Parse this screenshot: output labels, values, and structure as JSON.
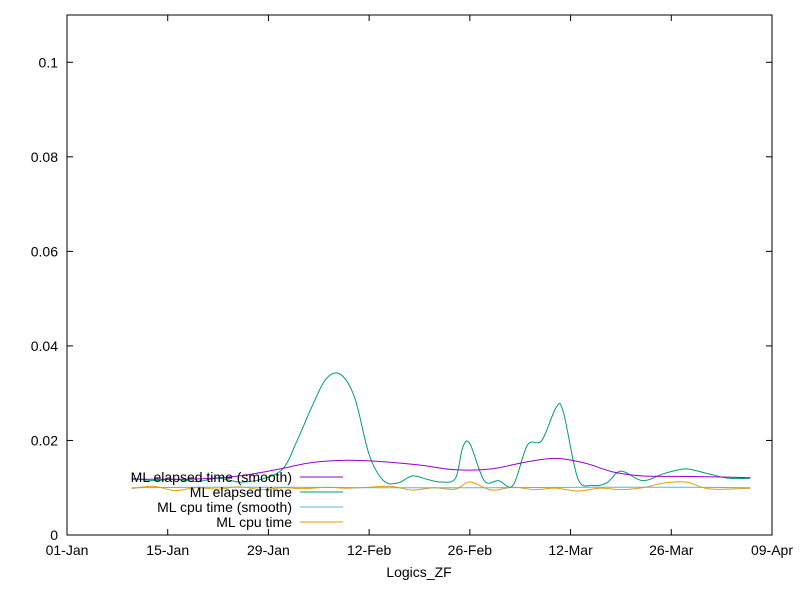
{
  "chart_data": {
    "type": "line",
    "title": "",
    "xlabel": "Logics_ZF",
    "ylabel": "",
    "x_axis_type": "date",
    "xlim": [
      "2022-01-01",
      "2022-04-09"
    ],
    "ylim": [
      0,
      0.11
    ],
    "x_ticks": [
      {
        "date": "2022-01-01",
        "label": "01-Jan"
      },
      {
        "date": "2022-01-15",
        "label": "15-Jan"
      },
      {
        "date": "2022-01-29",
        "label": "29-Jan"
      },
      {
        "date": "2022-02-12",
        "label": "12-Feb"
      },
      {
        "date": "2022-02-26",
        "label": "26-Feb"
      },
      {
        "date": "2022-03-12",
        "label": "12-Mar"
      },
      {
        "date": "2022-03-26",
        "label": "26-Mar"
      },
      {
        "date": "2022-04-09",
        "label": "09-Apr"
      }
    ],
    "y_ticks": [
      {
        "value": 0,
        "label": "0"
      },
      {
        "value": 0.02,
        "label": "0.02"
      },
      {
        "value": 0.04,
        "label": "0.04"
      },
      {
        "value": 0.06,
        "label": "0.06"
      },
      {
        "value": 0.08,
        "label": "0.08"
      },
      {
        "value": 0.1,
        "label": "0.1"
      }
    ],
    "grid": false,
    "legend_position": "bottom-left",
    "series": [
      {
        "name": "ML elapsed time (smooth)",
        "color": "#9400d3",
        "points": [
          [
            "2022-01-10",
            0.0118
          ],
          [
            "2022-01-15",
            0.0118
          ],
          [
            "2022-01-20",
            0.0119
          ],
          [
            "2022-01-25",
            0.0125
          ],
          [
            "2022-01-30",
            0.0138
          ],
          [
            "2022-02-04",
            0.0153
          ],
          [
            "2022-02-09",
            0.0158
          ],
          [
            "2022-02-14",
            0.0155
          ],
          [
            "2022-02-19",
            0.0148
          ],
          [
            "2022-02-24",
            0.0138
          ],
          [
            "2022-03-01",
            0.014
          ],
          [
            "2022-03-06",
            0.0155
          ],
          [
            "2022-03-10",
            0.0162
          ],
          [
            "2022-03-14",
            0.0152
          ],
          [
            "2022-03-18",
            0.0133
          ],
          [
            "2022-03-22",
            0.0125
          ],
          [
            "2022-03-27",
            0.0124
          ],
          [
            "2022-04-01",
            0.0123
          ],
          [
            "2022-04-06",
            0.0121
          ]
        ]
      },
      {
        "name": "ML elapsed time",
        "color": "#009e73",
        "points": [
          [
            "2022-01-10",
            0.012
          ],
          [
            "2022-01-13",
            0.0115
          ],
          [
            "2022-01-16",
            0.0118
          ],
          [
            "2022-01-19",
            0.0113
          ],
          [
            "2022-01-22",
            0.012
          ],
          [
            "2022-01-25",
            0.0112
          ],
          [
            "2022-01-28",
            0.0118
          ],
          [
            "2022-01-31",
            0.014
          ],
          [
            "2022-02-02",
            0.02
          ],
          [
            "2022-02-04",
            0.027
          ],
          [
            "2022-02-06",
            0.033
          ],
          [
            "2022-02-08",
            0.034
          ],
          [
            "2022-02-10",
            0.029
          ],
          [
            "2022-02-12",
            0.017
          ],
          [
            "2022-02-14",
            0.0115
          ],
          [
            "2022-02-16",
            0.011
          ],
          [
            "2022-02-18",
            0.0125
          ],
          [
            "2022-02-20",
            0.0118
          ],
          [
            "2022-02-22",
            0.0112
          ],
          [
            "2022-02-24",
            0.012
          ],
          [
            "2022-02-25",
            0.0185
          ],
          [
            "2022-02-26",
            0.0193
          ],
          [
            "2022-02-28",
            0.0115
          ],
          [
            "2022-03-02",
            0.0115
          ],
          [
            "2022-03-04",
            0.0105
          ],
          [
            "2022-03-06",
            0.019
          ],
          [
            "2022-03-08",
            0.02
          ],
          [
            "2022-03-10",
            0.027
          ],
          [
            "2022-03-11",
            0.026
          ],
          [
            "2022-03-13",
            0.012
          ],
          [
            "2022-03-15",
            0.0105
          ],
          [
            "2022-03-17",
            0.011
          ],
          [
            "2022-03-19",
            0.0135
          ],
          [
            "2022-03-22",
            0.0115
          ],
          [
            "2022-03-25",
            0.013
          ],
          [
            "2022-03-28",
            0.014
          ],
          [
            "2022-03-31",
            0.013
          ],
          [
            "2022-04-03",
            0.012
          ],
          [
            "2022-04-06",
            0.012
          ]
        ]
      },
      {
        "name": "ML cpu time (smooth)",
        "color": "#56b4e9",
        "points": [
          [
            "2022-01-10",
            0.01
          ],
          [
            "2022-01-20",
            0.0101
          ],
          [
            "2022-02-01",
            0.0101
          ],
          [
            "2022-02-15",
            0.01
          ],
          [
            "2022-03-01",
            0.01
          ],
          [
            "2022-03-15",
            0.0101
          ],
          [
            "2022-03-29",
            0.0101
          ],
          [
            "2022-04-06",
            0.01
          ]
        ]
      },
      {
        "name": "ML cpu time",
        "color": "#e69f00",
        "points": [
          [
            "2022-01-10",
            0.0098
          ],
          [
            "2022-01-13",
            0.0103
          ],
          [
            "2022-01-16",
            0.0094
          ],
          [
            "2022-01-19",
            0.01
          ],
          [
            "2022-01-22",
            0.0097
          ],
          [
            "2022-01-25",
            0.0102
          ],
          [
            "2022-01-28",
            0.0096
          ],
          [
            "2022-01-31",
            0.01
          ],
          [
            "2022-02-03",
            0.0098
          ],
          [
            "2022-02-06",
            0.0101
          ],
          [
            "2022-02-09",
            0.0099
          ],
          [
            "2022-02-12",
            0.0101
          ],
          [
            "2022-02-15",
            0.0103
          ],
          [
            "2022-02-18",
            0.0095
          ],
          [
            "2022-02-21",
            0.01
          ],
          [
            "2022-02-24",
            0.0097
          ],
          [
            "2022-02-26",
            0.0112
          ],
          [
            "2022-03-01",
            0.0095
          ],
          [
            "2022-03-04",
            0.0101
          ],
          [
            "2022-03-07",
            0.0096
          ],
          [
            "2022-03-10",
            0.0099
          ],
          [
            "2022-03-13",
            0.0093
          ],
          [
            "2022-03-16",
            0.0099
          ],
          [
            "2022-03-19",
            0.0096
          ],
          [
            "2022-03-22",
            0.01
          ],
          [
            "2022-03-25",
            0.011
          ],
          [
            "2022-03-28",
            0.0112
          ],
          [
            "2022-03-31",
            0.0098
          ],
          [
            "2022-04-03",
            0.0097
          ],
          [
            "2022-04-06",
            0.0099
          ]
        ]
      }
    ]
  }
}
